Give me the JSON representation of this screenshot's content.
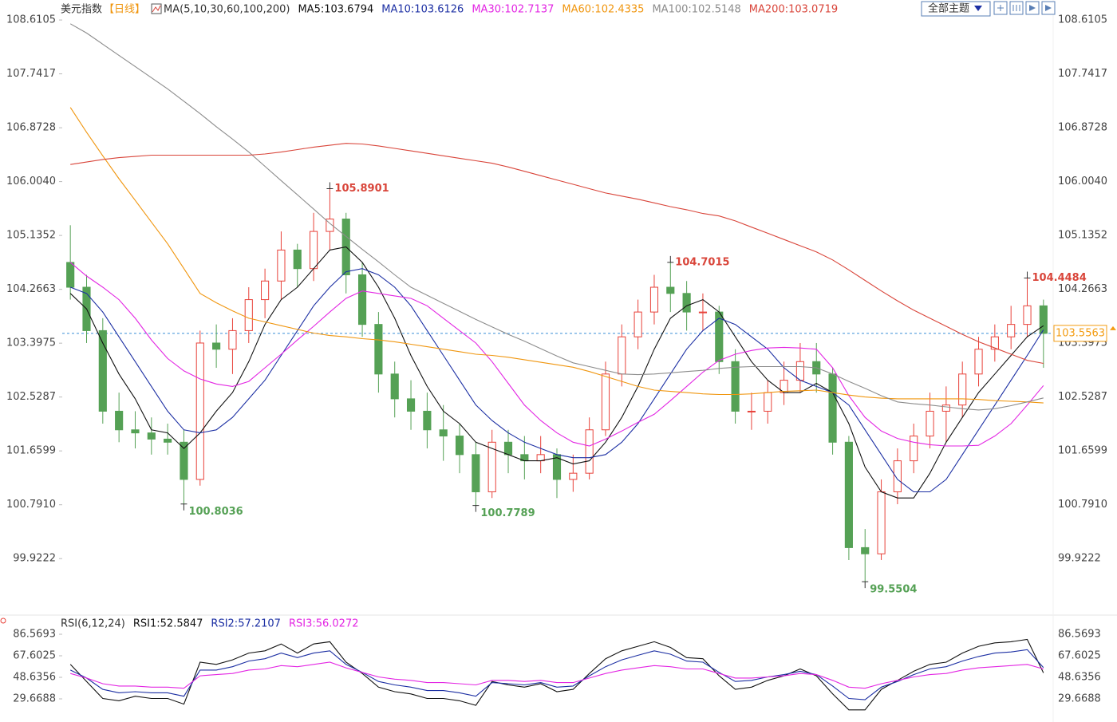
{
  "chart_data": [
    {
      "type": "candlestick",
      "title": "美元指数",
      "period": "【日线】",
      "indicator": "MA(5,10,30,60,100,200)",
      "up_color": "#e8423a",
      "down_color": "#55a155",
      "open": [
        104.7,
        104.3,
        103.6,
        102.3,
        102.0,
        101.95,
        101.85,
        101.8,
        101.2,
        103.4,
        103.3,
        103.6,
        104.1,
        104.4,
        104.9,
        104.6,
        105.2,
        105.4,
        104.5,
        103.7,
        102.9,
        102.5,
        102.3,
        102.0,
        101.9,
        101.6,
        101.0,
        101.8,
        101.6,
        101.5,
        101.6,
        101.2,
        101.3,
        102.0,
        102.9,
        103.5,
        103.9,
        104.3,
        104.2,
        103.9,
        103.9,
        103.1,
        102.3,
        102.3,
        102.6,
        102.8,
        103.1,
        102.9,
        101.8,
        100.1,
        100.0,
        101.0,
        101.5,
        101.9,
        102.3,
        102.4,
        102.9,
        103.3,
        103.5,
        103.7,
        104.0
      ],
      "high": [
        105.3,
        104.5,
        103.8,
        102.6,
        102.3,
        102.2,
        102.1,
        102.0,
        103.6,
        103.7,
        103.8,
        104.3,
        104.6,
        105.2,
        105.0,
        105.5,
        105.8901,
        105.5,
        104.7,
        103.9,
        103.1,
        102.8,
        102.6,
        102.4,
        102.1,
        101.8,
        102.0,
        102.0,
        101.9,
        101.9,
        101.7,
        101.6,
        102.2,
        103.1,
        103.7,
        104.1,
        104.5,
        104.7015,
        104.4,
        104.2,
        104.0,
        103.3,
        102.6,
        102.8,
        103.1,
        103.4,
        103.4,
        103.0,
        101.9,
        100.4,
        101.2,
        101.7,
        102.1,
        102.6,
        102.7,
        103.1,
        103.5,
        103.7,
        104.0,
        104.4484,
        104.1
      ],
      "low": [
        104.1,
        103.4,
        102.1,
        101.8,
        101.7,
        101.6,
        101.6,
        100.8036,
        101.1,
        103.0,
        102.9,
        103.4,
        103.8,
        104.1,
        104.3,
        104.4,
        104.9,
        104.2,
        103.5,
        102.6,
        102.2,
        102.0,
        101.7,
        101.5,
        101.3,
        100.7789,
        100.9,
        101.3,
        101.2,
        101.3,
        100.9,
        101.0,
        101.2,
        101.9,
        102.7,
        103.3,
        103.7,
        103.9,
        103.6,
        103.6,
        102.9,
        102.1,
        102.0,
        102.1,
        102.4,
        102.6,
        102.6,
        101.6,
        99.9,
        99.5504,
        99.9,
        100.8,
        101.3,
        101.7,
        101.8,
        102.2,
        102.7,
        103.1,
        103.3,
        103.5,
        103.0
      ],
      "close": [
        104.3,
        103.6,
        102.3,
        102.0,
        101.95,
        101.85,
        101.8,
        101.2,
        103.4,
        103.3,
        103.6,
        104.1,
        104.4,
        104.9,
        104.6,
        105.2,
        105.4,
        104.5,
        103.7,
        102.9,
        102.5,
        102.3,
        102.0,
        101.9,
        101.6,
        101.0,
        101.8,
        101.6,
        101.5,
        101.6,
        101.2,
        101.3,
        102.0,
        102.9,
        103.5,
        103.9,
        104.3,
        104.2,
        103.9,
        103.9,
        103.1,
        102.3,
        102.3,
        102.6,
        102.8,
        103.1,
        102.9,
        101.8,
        100.1,
        100.0,
        101.0,
        101.5,
        101.9,
        102.3,
        102.4,
        102.9,
        103.3,
        103.5,
        103.7,
        104.0,
        103.5563
      ],
      "series": [
        {
          "name": "MA5:103.6794",
          "color": "#111111",
          "values": [
            104.2,
            103.95,
            103.4,
            102.9,
            102.5,
            102.0,
            101.95,
            101.7,
            101.95,
            102.3,
            102.6,
            103.1,
            103.7,
            104.1,
            104.3,
            104.6,
            104.9,
            104.95,
            104.7,
            104.3,
            103.8,
            103.2,
            102.7,
            102.3,
            102.1,
            101.8,
            101.7,
            101.6,
            101.5,
            101.5,
            101.55,
            101.45,
            101.5,
            101.8,
            102.2,
            102.7,
            103.3,
            103.8,
            104.0,
            104.1,
            103.9,
            103.5,
            103.1,
            102.8,
            102.6,
            102.6,
            102.75,
            102.6,
            102.1,
            101.4,
            101.0,
            100.9,
            100.9,
            101.3,
            101.8,
            102.2,
            102.6,
            102.9,
            103.2,
            103.5,
            103.6794
          ]
        },
        {
          "name": "MA10:103.6126",
          "color": "#1c2fa3",
          "values": [
            104.3,
            104.2,
            103.9,
            103.5,
            103.1,
            102.7,
            102.3,
            102.0,
            101.95,
            102.0,
            102.2,
            102.5,
            102.8,
            103.2,
            103.6,
            104.0,
            104.3,
            104.55,
            104.6,
            104.5,
            104.3,
            104.0,
            103.6,
            103.2,
            102.8,
            102.4,
            102.15,
            101.95,
            101.8,
            101.7,
            101.6,
            101.55,
            101.55,
            101.6,
            101.8,
            102.1,
            102.5,
            102.9,
            103.3,
            103.6,
            103.8,
            103.7,
            103.5,
            103.3,
            103.0,
            102.8,
            102.7,
            102.6,
            102.4,
            102.0,
            101.6,
            101.2,
            101.0,
            101.0,
            101.2,
            101.6,
            102.0,
            102.4,
            102.8,
            103.2,
            103.6126
          ]
        },
        {
          "name": "MA30:102.7137",
          "color": "#e326e3",
          "values": [
            104.7,
            104.48,
            104.3,
            104.1,
            103.8,
            103.45,
            103.15,
            102.95,
            102.82,
            102.74,
            102.7,
            102.78,
            103.0,
            103.22,
            103.45,
            103.67,
            103.9,
            104.12,
            104.24,
            104.2,
            104.16,
            104.12,
            104.0,
            103.8,
            103.6,
            103.4,
            103.1,
            102.75,
            102.4,
            102.15,
            101.95,
            101.8,
            101.74,
            101.85,
            101.98,
            102.12,
            102.25,
            102.47,
            102.7,
            102.93,
            103.12,
            103.22,
            103.28,
            103.32,
            103.33,
            103.32,
            103.3,
            103.0,
            102.55,
            102.2,
            101.98,
            101.86,
            101.8,
            101.76,
            101.74,
            101.74,
            101.75,
            101.9,
            102.1,
            102.4,
            102.7137
          ]
        },
        {
          "name": "MA60:102.4335",
          "color": "#f0960f",
          "values": [
            107.2,
            106.8,
            106.42,
            106.05,
            105.7,
            105.35,
            105.0,
            104.6,
            104.2,
            104.05,
            103.92,
            103.8,
            103.74,
            103.68,
            103.62,
            103.56,
            103.52,
            103.5,
            103.47,
            103.45,
            103.42,
            103.38,
            103.34,
            103.3,
            103.26,
            103.22,
            103.2,
            103.17,
            103.13,
            103.09,
            103.05,
            103.01,
            102.94,
            102.86,
            102.78,
            102.7,
            102.64,
            102.62,
            102.6,
            102.58,
            102.57,
            102.57,
            102.58,
            102.6,
            102.62,
            102.63,
            102.64,
            102.6,
            102.56,
            102.53,
            102.51,
            102.5,
            102.5,
            102.5,
            102.5,
            102.5,
            102.49,
            102.47,
            102.46,
            102.45,
            102.4335
          ]
        },
        {
          "name": "MA100:102.5148",
          "color": "#8c8c8c",
          "values": [
            108.55,
            108.4,
            108.22,
            108.04,
            107.86,
            107.68,
            107.5,
            107.3,
            107.1,
            106.89,
            106.69,
            106.48,
            106.25,
            106.02,
            105.79,
            105.56,
            105.33,
            105.12,
            104.91,
            104.71,
            104.5,
            104.3,
            104.17,
            104.04,
            103.91,
            103.78,
            103.66,
            103.54,
            103.43,
            103.31,
            103.19,
            103.08,
            103.02,
            102.96,
            102.9,
            102.89,
            102.9,
            102.92,
            102.94,
            102.96,
            102.99,
            103.01,
            103.02,
            103.02,
            103.02,
            103.02,
            103.0,
            102.9,
            102.78,
            102.67,
            102.55,
            102.45,
            102.42,
            102.4,
            102.37,
            102.34,
            102.32,
            102.34,
            102.39,
            102.45,
            102.5148
          ]
        },
        {
          "name": "MA200:103.0719",
          "color": "#d9453a",
          "values": [
            106.28,
            106.32,
            106.36,
            106.39,
            106.41,
            106.43,
            106.43,
            106.43,
            106.43,
            106.43,
            106.43,
            106.43,
            106.45,
            106.48,
            106.52,
            106.56,
            106.59,
            106.62,
            106.61,
            106.58,
            106.54,
            106.5,
            106.46,
            106.42,
            106.38,
            106.34,
            106.3,
            106.24,
            106.17,
            106.1,
            106.03,
            105.96,
            105.89,
            105.82,
            105.77,
            105.72,
            105.66,
            105.6,
            105.55,
            105.49,
            105.45,
            105.37,
            105.27,
            105.17,
            105.07,
            104.97,
            104.87,
            104.74,
            104.58,
            104.41,
            104.24,
            104.08,
            103.93,
            103.8,
            103.67,
            103.54,
            103.42,
            103.32,
            103.22,
            103.12,
            103.0719
          ]
        }
      ],
      "ylim": [
        99.05,
        108.74
      ],
      "yticks": [
        108.6105,
        107.7417,
        106.8728,
        {
          "value": 106.004,
          "label": "106.0040"
        },
        105.1352,
        104.2663,
        103.3975,
        102.5287,
        101.6599,
        {
          "value": 100.791,
          "label": "100.7910"
        },
        99.9222
      ],
      "annotations": [
        {
          "value": 105.8901,
          "color": "#d9453a"
        },
        {
          "value": 104.7015,
          "color": "#d9453a"
        },
        {
          "value": 104.4484,
          "color": "#d9453a"
        },
        {
          "value": 100.8036,
          "color": "#55a155"
        },
        {
          "value": 100.7789,
          "color": "#55a155"
        },
        {
          "value": 99.5504,
          "color": "#55a155"
        }
      ],
      "current_price": 103.5563,
      "current_color": "#f39c12",
      "current_line_color": "#3a8fd6",
      "grid": false
    },
    {
      "type": "line",
      "title": "RSI(6,12,24)",
      "series": [
        {
          "name": "RSI1:52.5847",
          "color": "#111111",
          "values": [
            60,
            45,
            30,
            28,
            32,
            30,
            30,
            25,
            62,
            60,
            64,
            70,
            72,
            78,
            70,
            78,
            80,
            62,
            52,
            40,
            36,
            34,
            30,
            30,
            28,
            24,
            45,
            42,
            40,
            43,
            36,
            38,
            52,
            65,
            72,
            76,
            80,
            75,
            66,
            65,
            50,
            38,
            40,
            46,
            50,
            56,
            50,
            34,
            20,
            20,
            38,
            46,
            54,
            60,
            62,
            70,
            76,
            79,
            80,
            82,
            52.5847
          ]
        },
        {
          "name": "RSI2:57.2107",
          "color": "#1c2fa3",
          "values": [
            55,
            48,
            38,
            35,
            36,
            35,
            35,
            32,
            55,
            55,
            58,
            63,
            65,
            70,
            66,
            70,
            72,
            60,
            53,
            45,
            42,
            40,
            37,
            37,
            35,
            32,
            44,
            43,
            42,
            44,
            40,
            41,
            50,
            58,
            64,
            68,
            72,
            69,
            63,
            62,
            53,
            45,
            46,
            49,
            51,
            54,
            51,
            41,
            30,
            29,
            40,
            45,
            51,
            56,
            58,
            63,
            67,
            70,
            71,
            73,
            57.2107
          ]
        },
        {
          "name": "RSI3:56.0272",
          "color": "#e326e3",
          "values": [
            52,
            48,
            43,
            41,
            41,
            40,
            40,
            39,
            50,
            51,
            52,
            55,
            56,
            59,
            58,
            60,
            62,
            57,
            53,
            49,
            47,
            46,
            44,
            44,
            43,
            42,
            46,
            46,
            45,
            46,
            44,
            44,
            48,
            52,
            55,
            57,
            59,
            58,
            56,
            56,
            52,
            48,
            48,
            49,
            50,
            52,
            51,
            46,
            40,
            39,
            43,
            46,
            49,
            51,
            52,
            55,
            57,
            58,
            59,
            60,
            56.0272
          ]
        }
      ],
      "ylim": [
        10.7,
        92.2
      ],
      "yticks": [
        86.5693,
        67.6025,
        48.6356,
        29.6688
      ],
      "grid": false
    }
  ],
  "toolbar": {
    "theme": "全部主题"
  }
}
